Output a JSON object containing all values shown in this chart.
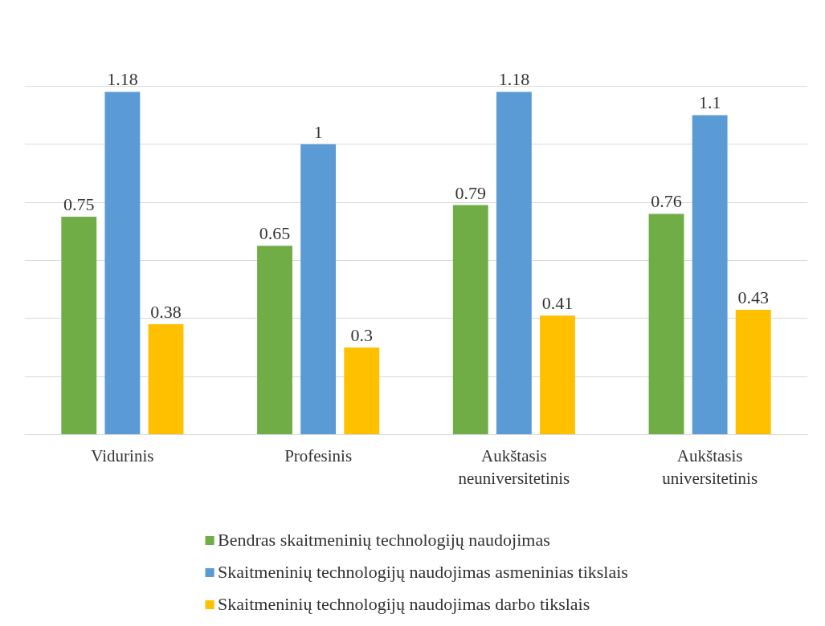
{
  "chart_data": {
    "type": "bar",
    "categories": [
      "Vidurinis",
      "Profesinis",
      "Aukštasis neuniversitetinis",
      "Aukštasis universitetinis"
    ],
    "series": [
      {
        "name": "Bendras skaitmeninių technologijų naudojimas",
        "color": "#70ad47",
        "values": [
          0.75,
          0.65,
          0.79,
          0.76
        ]
      },
      {
        "name": "Skaitmeninių technologijų naudojimas asmeninias tikslais",
        "color": "#5b9bd5",
        "values": [
          1.18,
          1,
          1.18,
          1.1
        ]
      },
      {
        "name": "Skaitmeninių technologijų naudojimas darbo tikslais",
        "color": "#ffc000",
        "values": [
          0.38,
          0.3,
          0.41,
          0.43
        ]
      }
    ],
    "tick_labels": "x",
    "grid": "y",
    "data_labels": true,
    "legend": "bottom"
  }
}
